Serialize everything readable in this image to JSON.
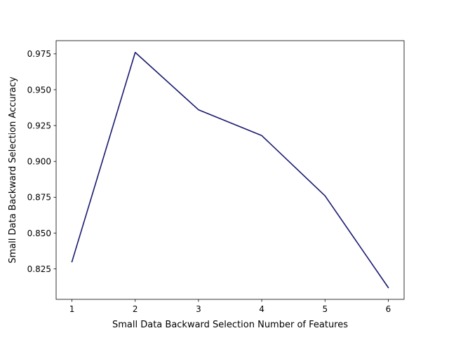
{
  "chart_data": {
    "type": "line",
    "title": "",
    "xlabel": "Small Data Backward Selection Number of Features",
    "ylabel": "Small Data Backward Selection Accuracy",
    "x": [
      1,
      2,
      3,
      4,
      5,
      6
    ],
    "series": [
      {
        "values": [
          0.83,
          0.976,
          0.936,
          0.918,
          0.876,
          0.812
        ],
        "color": "#191970"
      }
    ],
    "xticks": [
      1,
      2,
      3,
      4,
      5,
      6
    ],
    "xtick_labels": [
      "1",
      "2",
      "3",
      "4",
      "5",
      "6"
    ],
    "yticks": [
      0.825,
      0.85,
      0.875,
      0.9,
      0.925,
      0.95,
      0.975
    ],
    "ytick_labels": [
      "0.825",
      "0.850",
      "0.875",
      "0.900",
      "0.925",
      "0.950",
      "0.975"
    ],
    "xlim": [
      0.75,
      6.25
    ],
    "ylim": [
      0.8038,
      0.9842
    ],
    "grid": false,
    "legend": "none"
  }
}
